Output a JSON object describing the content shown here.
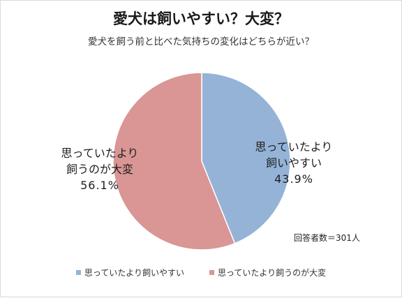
{
  "chart_data": {
    "type": "pie",
    "title": "愛犬は飼いやすい？大変？",
    "subtitle": "愛犬を飼う前と比べた気持ちの変化はどちらが近い？",
    "start_angle_deg": 0,
    "direction": "clockwise",
    "slices": [
      {
        "name": "思っていたより飼いやすい",
        "label_lines": [
          "思っていたより",
          "飼いやすい"
        ],
        "value": 43.9,
        "value_label": "43.9%",
        "color": "#95b3d7"
      },
      {
        "name": "思っていたより飼うのが大変",
        "label_lines": [
          "思っていたより",
          "飼うのが大変"
        ],
        "value": 56.1,
        "value_label": "56.1%",
        "color": "#d99694"
      }
    ],
    "legend": {
      "position": "bottom"
    },
    "sample_note": "回答者数＝301人"
  }
}
